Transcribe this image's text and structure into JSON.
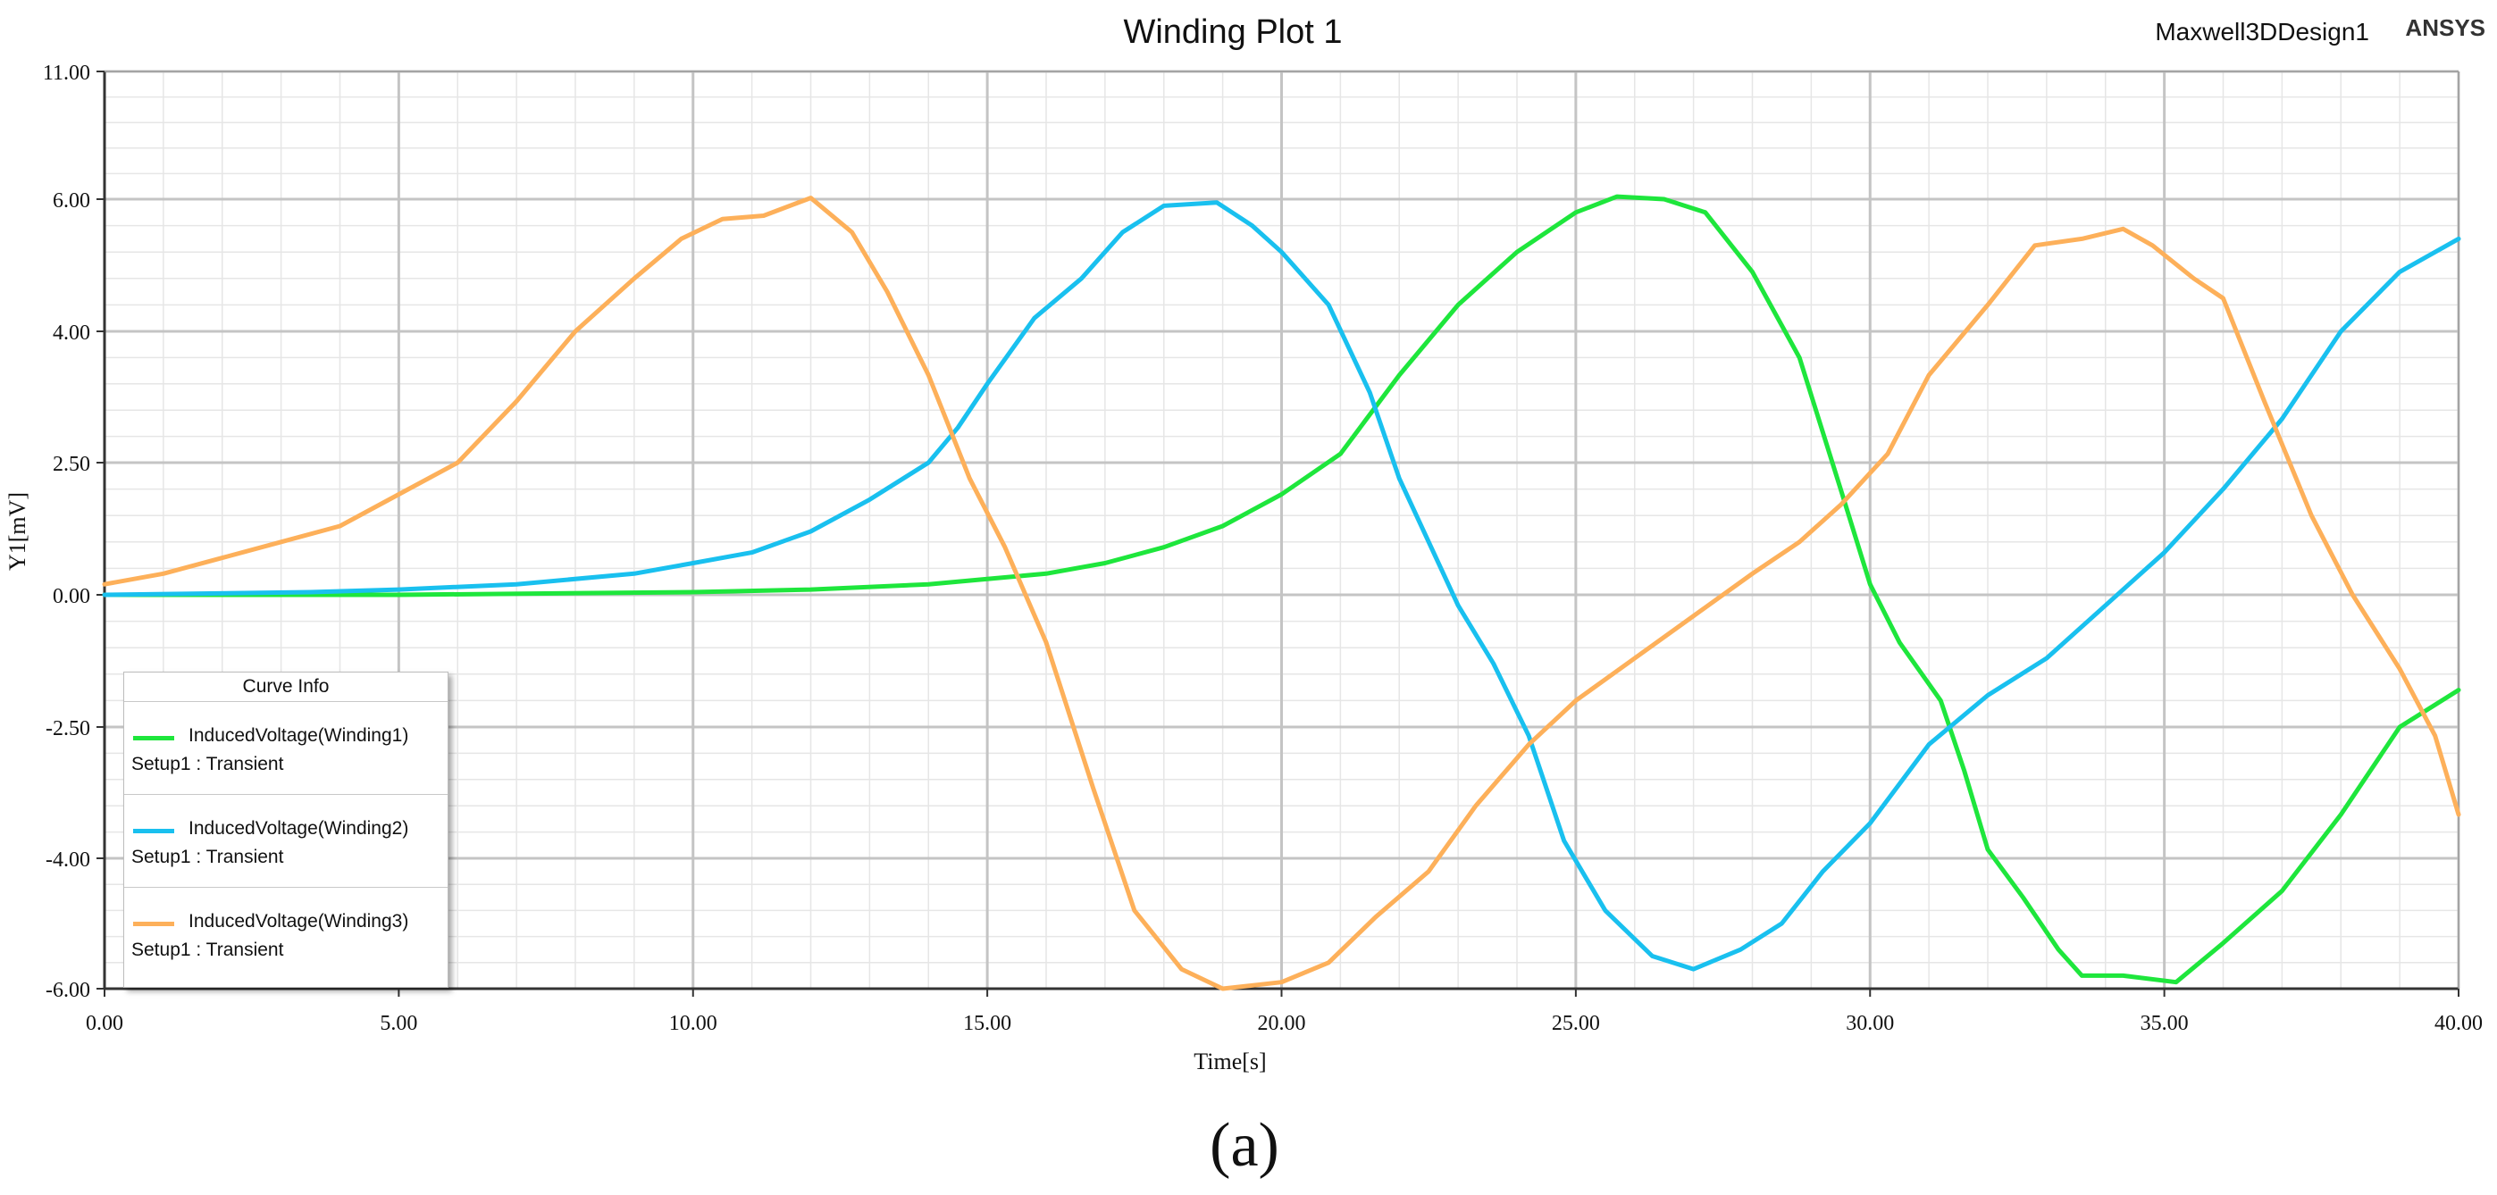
{
  "caption": "(a)",
  "header": {
    "design_name": "Maxwell3DDesign1",
    "brand": "ANSYS"
  },
  "legend": {
    "title": "Curve Info",
    "entries": [
      {
        "name": "InducedVoltage(Winding1)",
        "setup": "Setup1 : Transient",
        "color": "#1ee63c"
      },
      {
        "name": "InducedVoltage(Winding2)",
        "setup": "Setup1 : Transient",
        "color": "#19c0ef"
      },
      {
        "name": "InducedVoltage(Winding3)",
        "setup": "Setup1 : Transient",
        "color": "#fdb05a"
      }
    ]
  },
  "chart_data": {
    "type": "line",
    "title": "Winding Plot 1",
    "xlabel": "Time[s]",
    "ylabel": "Y1[mV]",
    "xlim": [
      0,
      40
    ],
    "ylim": [
      -6,
      11
    ],
    "x_ticks": [
      "0.00",
      "5.00",
      "10.00",
      "15.00",
      "20.00",
      "25.00",
      "30.00",
      "35.00",
      "40.00"
    ],
    "y_ticks": [
      {
        "label": "11.00",
        "value": 11
      },
      {
        "label": "6.00",
        "value": 6
      },
      {
        "label": "4.00",
        "value": 4
      },
      {
        "label": "2.50",
        "value": 2.5
      },
      {
        "label": "0.00",
        "value": 0
      },
      {
        "label": "-2.50",
        "value": -2.5
      },
      {
        "label": "-4.00",
        "value": -4
      },
      {
        "label": "-6.00",
        "value": -6
      }
    ],
    "grid": true,
    "legend_position": "bottom-left",
    "series": [
      {
        "name": "InducedVoltage(Winding1)",
        "color": "#1ee63c",
        "points": [
          [
            0,
            0
          ],
          [
            5,
            0
          ],
          [
            10,
            0.05
          ],
          [
            12,
            0.1
          ],
          [
            14,
            0.2
          ],
          [
            15,
            0.3
          ],
          [
            16,
            0.4
          ],
          [
            17,
            0.6
          ],
          [
            18,
            0.9
          ],
          [
            19,
            1.3
          ],
          [
            20,
            1.9
          ],
          [
            21,
            2.6
          ],
          [
            22,
            3.5
          ],
          [
            23,
            4.4
          ],
          [
            24,
            5.2
          ],
          [
            25,
            5.8
          ],
          [
            25.7,
            6.1
          ],
          [
            26.5,
            6.0
          ],
          [
            27.2,
            5.8
          ],
          [
            28,
            4.9
          ],
          [
            28.8,
            3.7
          ],
          [
            29.5,
            2.0
          ],
          [
            30,
            0.2
          ],
          [
            30.5,
            -0.9
          ],
          [
            31.2,
            -2.0
          ],
          [
            31.6,
            -3.0
          ],
          [
            32,
            -3.9
          ],
          [
            32.6,
            -4.6
          ],
          [
            33.2,
            -5.4
          ],
          [
            33.6,
            -5.8
          ],
          [
            34.3,
            -5.8
          ],
          [
            35.2,
            -5.9
          ],
          [
            36,
            -5.3
          ],
          [
            37,
            -4.5
          ],
          [
            38,
            -3.5
          ],
          [
            39,
            -2.5
          ],
          [
            40,
            -1.8
          ]
        ]
      },
      {
        "name": "InducedVoltage(Winding2)",
        "color": "#19c0ef",
        "points": [
          [
            0,
            0
          ],
          [
            3.5,
            0.05
          ],
          [
            5,
            0.1
          ],
          [
            7,
            0.2
          ],
          [
            9,
            0.4
          ],
          [
            10,
            0.6
          ],
          [
            11,
            0.8
          ],
          [
            12,
            1.2
          ],
          [
            13,
            1.8
          ],
          [
            14,
            2.5
          ],
          [
            14.5,
            2.9
          ],
          [
            15,
            3.4
          ],
          [
            15.8,
            4.2
          ],
          [
            16.6,
            4.8
          ],
          [
            17.3,
            5.5
          ],
          [
            18,
            5.9
          ],
          [
            18.9,
            5.95
          ],
          [
            19.5,
            5.6
          ],
          [
            20,
            5.2
          ],
          [
            20.8,
            4.4
          ],
          [
            21.5,
            3.3
          ],
          [
            22,
            2.2
          ],
          [
            22.5,
            1.0
          ],
          [
            23,
            -0.2
          ],
          [
            23.6,
            -1.3
          ],
          [
            24.2,
            -2.6
          ],
          [
            24.8,
            -3.8
          ],
          [
            25.5,
            -4.8
          ],
          [
            26.3,
            -5.5
          ],
          [
            27,
            -5.7
          ],
          [
            27.8,
            -5.4
          ],
          [
            28.5,
            -5.0
          ],
          [
            29.2,
            -4.2
          ],
          [
            30,
            -3.6
          ],
          [
            31,
            -2.7
          ],
          [
            32,
            -1.9
          ],
          [
            33,
            -1.2
          ],
          [
            34,
            -0.2
          ],
          [
            35,
            0.8
          ],
          [
            36,
            2.0
          ],
          [
            37,
            3.0
          ],
          [
            38,
            4.0
          ],
          [
            39,
            4.9
          ],
          [
            40,
            5.4
          ]
        ]
      },
      {
        "name": "InducedVoltage(Winding3)",
        "color": "#fdb05a",
        "points": [
          [
            0,
            0.2
          ],
          [
            1,
            0.4
          ],
          [
            2,
            0.7
          ],
          [
            3,
            1.0
          ],
          [
            4,
            1.3
          ],
          [
            5,
            1.9
          ],
          [
            6,
            2.5
          ],
          [
            7,
            3.2
          ],
          [
            8,
            4.0
          ],
          [
            9,
            4.8
          ],
          [
            9.8,
            5.4
          ],
          [
            10.5,
            5.7
          ],
          [
            11.2,
            5.75
          ],
          [
            12,
            6.05
          ],
          [
            12.7,
            5.5
          ],
          [
            13.3,
            4.6
          ],
          [
            14,
            3.5
          ],
          [
            14.7,
            2.2
          ],
          [
            15.3,
            0.9
          ],
          [
            16,
            -0.9
          ],
          [
            16.8,
            -3.2
          ],
          [
            17.5,
            -4.8
          ],
          [
            18.3,
            -5.7
          ],
          [
            19,
            -6.0
          ],
          [
            20,
            -5.9
          ],
          [
            20.8,
            -5.6
          ],
          [
            21.6,
            -4.9
          ],
          [
            22.5,
            -4.2
          ],
          [
            23.3,
            -3.4
          ],
          [
            24.2,
            -2.7
          ],
          [
            25,
            -2.0
          ],
          [
            26,
            -1.2
          ],
          [
            27,
            -0.4
          ],
          [
            28,
            0.4
          ],
          [
            28.8,
            1.0
          ],
          [
            29.5,
            1.7
          ],
          [
            30.3,
            2.6
          ],
          [
            31,
            3.5
          ],
          [
            32,
            4.4
          ],
          [
            32.8,
            5.3
          ],
          [
            33.6,
            5.4
          ],
          [
            34.3,
            5.55
          ],
          [
            34.8,
            5.3
          ],
          [
            35.5,
            4.8
          ],
          [
            36,
            4.5
          ],
          [
            36.7,
            3.2
          ],
          [
            37.5,
            1.5
          ],
          [
            38.2,
            0.0
          ],
          [
            39,
            -1.4
          ],
          [
            39.6,
            -2.6
          ],
          [
            40,
            -3.5
          ]
        ]
      }
    ]
  }
}
